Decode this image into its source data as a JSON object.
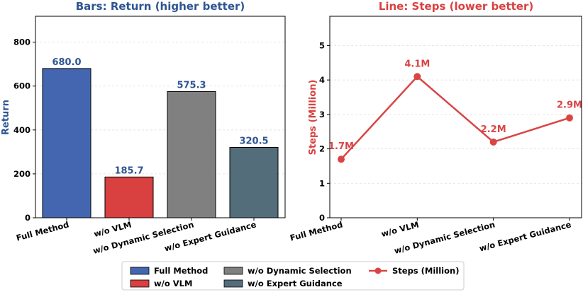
{
  "colors": {
    "full_method": "#4466b0",
    "wo_vlm": "#d94040",
    "wo_dynamic": "#808080",
    "wo_expert": "#536d7b",
    "left_title": "#2e5592",
    "right_title": "#d94040",
    "line": "#d94545"
  },
  "chart_data": [
    {
      "type": "bar",
      "title": "Bars: Return (higher better)",
      "xlabel": "",
      "ylabel": "Return",
      "categories": [
        "Full Method",
        "w/o VLM",
        "w/o Dynamic Selection",
        "w/o Expert Guidance"
      ],
      "values": [
        680.0,
        185.7,
        575.3,
        320.5
      ],
      "value_labels": [
        "680.0",
        "185.7",
        "575.3",
        "320.5"
      ],
      "ylim": [
        0,
        918
      ],
      "yticks": [
        0,
        200,
        400,
        600,
        800
      ],
      "grid": "horizontal dashed"
    },
    {
      "type": "line",
      "title": "Line: Steps (lower better)",
      "xlabel": "",
      "ylabel": "Steps (Million)",
      "categories": [
        "Full Method",
        "w/o VLM",
        "w/o Dynamic Selection",
        "w/o Expert Guidance"
      ],
      "values": [
        1.7,
        4.1,
        2.2,
        2.9
      ],
      "value_labels": [
        "1.7M",
        "4.1M",
        "2.2M",
        "2.9M"
      ],
      "ylim": [
        0,
        5.85
      ],
      "yticks": [
        0,
        1,
        2,
        3,
        4,
        5
      ],
      "grid": "horizontal dashed"
    }
  ],
  "legend": {
    "placement": "bottom-center",
    "items": [
      "Full Method",
      "w/o VLM",
      "w/o Dynamic Selection",
      "w/o Expert Guidance",
      "Steps (Million)"
    ]
  }
}
